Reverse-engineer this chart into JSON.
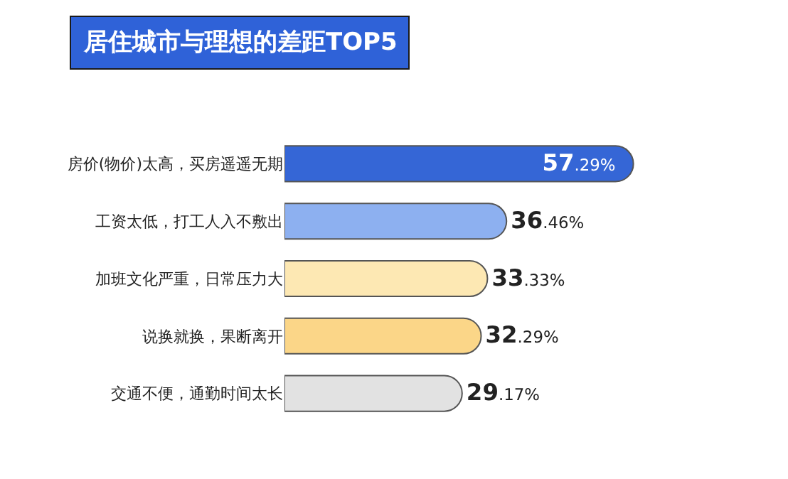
{
  "chart_data": {
    "type": "bar",
    "orientation": "horizontal",
    "title": "居住城市与理想的差距TOP5",
    "categories": [
      "房价(物价)太高，买房遥遥无期",
      "工资太低，打工人入不敷出",
      "加班文化严重，日常压力大",
      "说换就换，果断离开",
      "交通不便，通勤时间太长"
    ],
    "values": [
      57.29,
      36.46,
      33.33,
      32.29,
      29.17
    ],
    "value_labels": [
      "57.29%",
      "36.46%",
      "33.33%",
      "32.29%",
      "29.17%"
    ],
    "colors": [
      "#3566d6",
      "#8db0f0",
      "#fde8b3",
      "#fbd688",
      "#e2e2e2"
    ]
  }
}
